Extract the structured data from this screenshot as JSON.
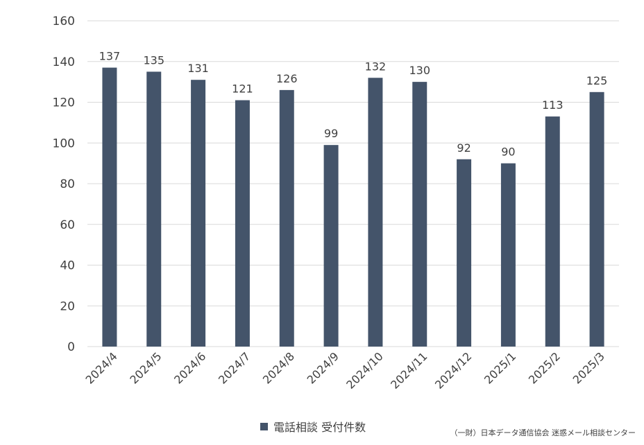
{
  "chart_data": {
    "type": "bar",
    "categories": [
      "2024/4",
      "2024/5",
      "2024/6",
      "2024/7",
      "2024/8",
      "2024/9",
      "2024/10",
      "2024/11",
      "2024/12",
      "2025/1",
      "2025/2",
      "2025/3"
    ],
    "series": [
      {
        "name": "電話相談 受付件数",
        "values": [
          137,
          135,
          131,
          121,
          126,
          99,
          132,
          130,
          92,
          90,
          113,
          125
        ]
      }
    ],
    "title": "",
    "xlabel": "",
    "ylabel": "",
    "ylim": [
      0,
      160
    ],
    "yticks": [
      0,
      20,
      40,
      60,
      80,
      100,
      120,
      140,
      160
    ],
    "grid": true,
    "legend_position": "bottom",
    "data_labels": true,
    "colors": {
      "bar": "#44546A",
      "grid": "#D9D9D9",
      "text": "#404040"
    }
  },
  "source_note": "（一財）日本データ通信協会 迷惑メール相談センター"
}
